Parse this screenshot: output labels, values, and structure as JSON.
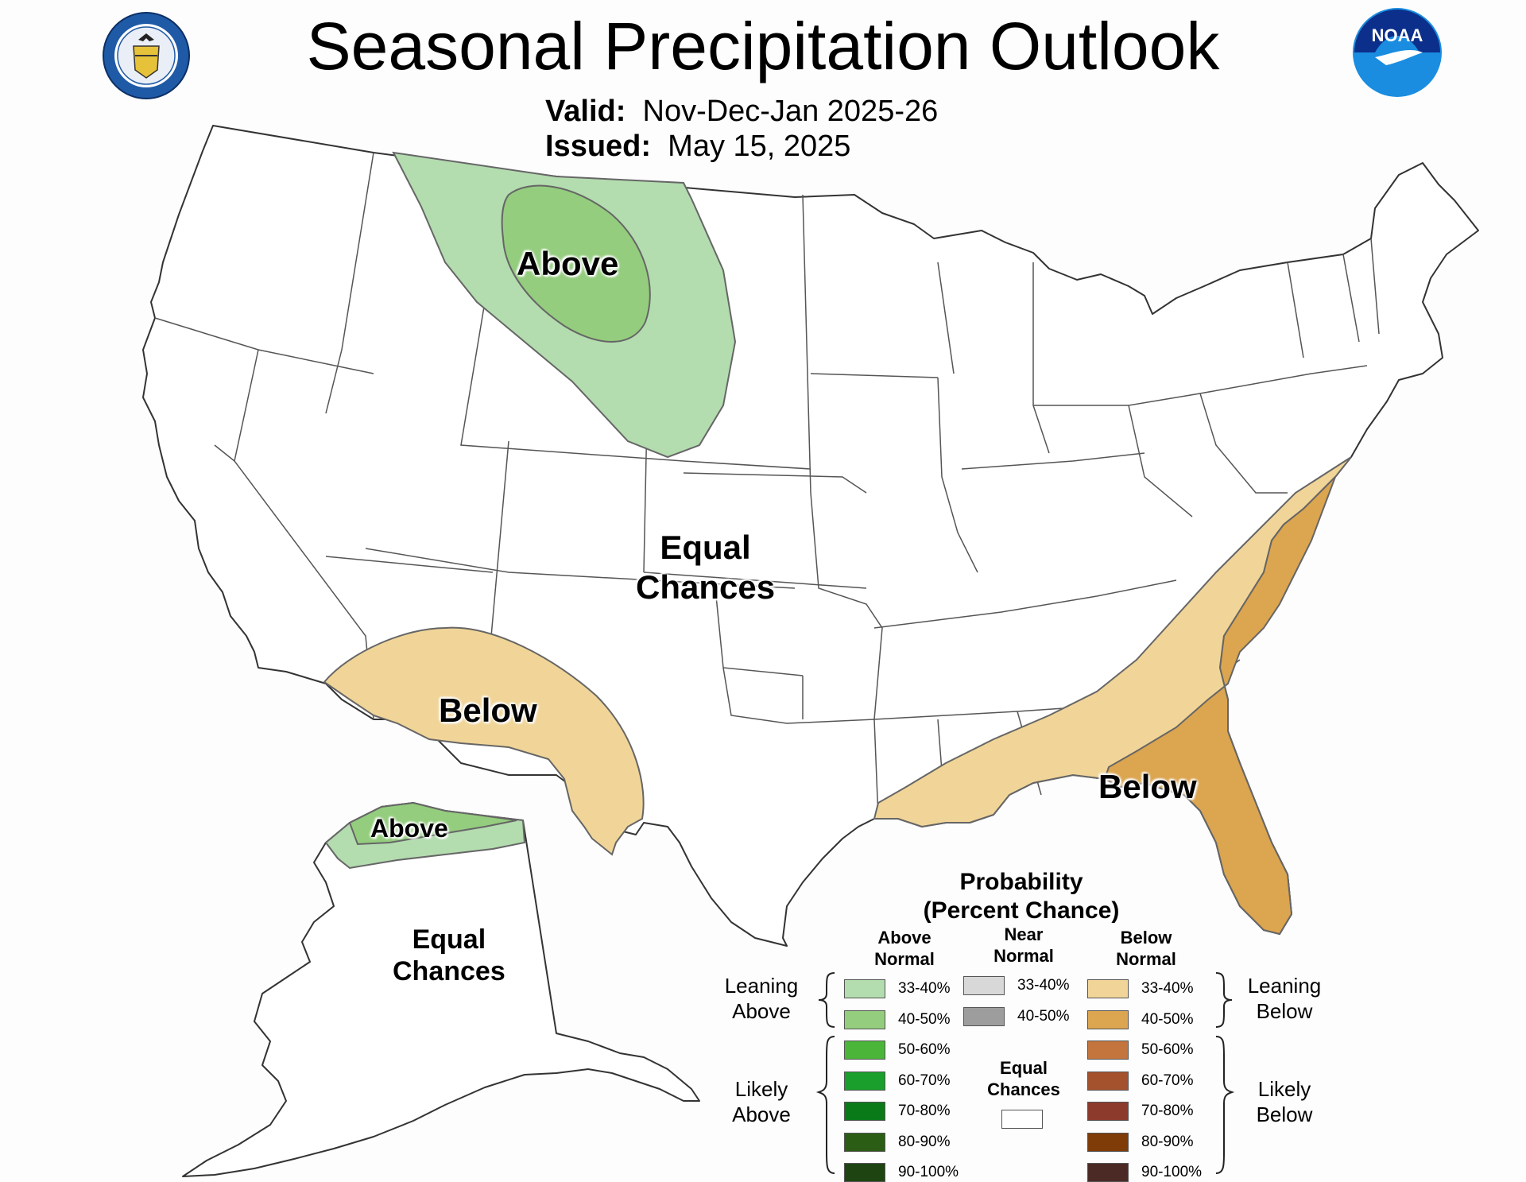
{
  "title": "Seasonal Precipitation Outlook",
  "valid_label": "Valid:",
  "valid_value": "Nov-Dec-Jan 2025-26",
  "issued_label": "Issued:",
  "issued_value": "May 15, 2025",
  "logos": {
    "commerce_seal_text": "DEPARTMENT OF COMMERCE · UNITED STATES OF AMERICA",
    "noaa_text": "NOAA"
  },
  "map_labels": {
    "north_above": "Above",
    "sw_below": "Below",
    "se_below": "Below",
    "equal_line1": "Equal",
    "equal_line2": "Chances",
    "ak_above": "Above",
    "ak_equal_line1": "Equal",
    "ak_equal_line2": "Chances"
  },
  "legend": {
    "title_line1": "Probability",
    "title_line2": "(Percent Chance)",
    "above_header_1": "Above",
    "above_header_2": "Normal",
    "near_header_1": "Near",
    "near_header_2": "Normal",
    "below_header_1": "Below",
    "below_header_2": "Normal",
    "leaning_above_1": "Leaning",
    "leaning_above_2": "Above",
    "likely_above_1": "Likely",
    "likely_above_2": "Above",
    "leaning_below_1": "Leaning",
    "leaning_below_2": "Below",
    "likely_below_1": "Likely",
    "likely_below_2": "Below",
    "equal_chances_1": "Equal",
    "equal_chances_2": "Chances",
    "above_ranges": [
      "33-40%",
      "40-50%",
      "50-60%",
      "60-70%",
      "70-80%",
      "80-90%",
      "90-100%"
    ],
    "above_colors": [
      "#b3dcaf",
      "#94cd7e",
      "#4bb53a",
      "#1a9e2c",
      "#0a7a19",
      "#2b5e14",
      "#1e4511"
    ],
    "near_ranges": [
      "33-40%",
      "40-50%"
    ],
    "near_colors": [
      "#d8d8d8",
      "#9d9d9d"
    ],
    "below_ranges": [
      "33-40%",
      "40-50%",
      "50-60%",
      "60-70%",
      "70-80%",
      "80-90%",
      "90-100%"
    ],
    "below_colors": [
      "#f1d598",
      "#dca54f",
      "#c4753d",
      "#a4522d",
      "#8c3a2c",
      "#7f3b08",
      "#4b2a26"
    ]
  }
}
